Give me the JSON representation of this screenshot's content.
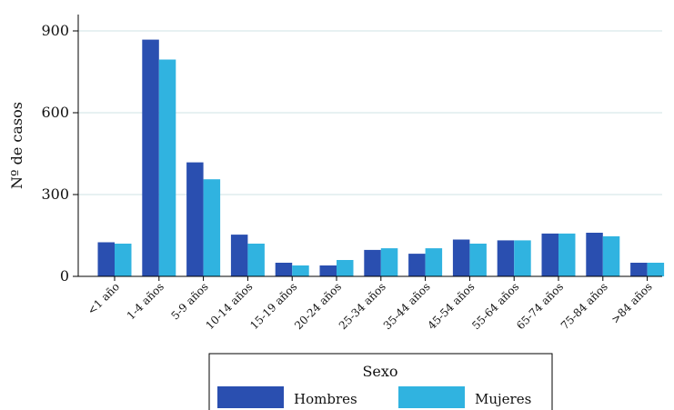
{
  "chart_data": {
    "type": "bar",
    "ylabel": "Nº de casos",
    "ylim": [
      0,
      900
    ],
    "yticks": [
      0,
      300,
      600,
      900
    ],
    "grid": true,
    "categories": [
      "<1 año",
      "1-4 años",
      "5-9 años",
      "10-14 años",
      "15-19 años",
      "20-24 años",
      "25-34 años",
      "35-44 años",
      "45-54 años",
      "55-64 años",
      "65-74 años",
      "75-84 años",
      ">84 años"
    ],
    "legend": {
      "title": "Sexo",
      "position": "bottom"
    },
    "series": [
      {
        "name": "Hombres",
        "color": "#2a4fb0",
        "values": [
          125,
          868,
          418,
          153,
          50,
          40,
          97,
          83,
          135,
          132,
          157,
          160,
          50
        ]
      },
      {
        "name": "Mujeres",
        "color": "#30b3e0",
        "values": [
          120,
          795,
          356,
          120,
          40,
          60,
          103,
          103,
          120,
          132,
          157,
          147,
          50
        ]
      }
    ]
  }
}
